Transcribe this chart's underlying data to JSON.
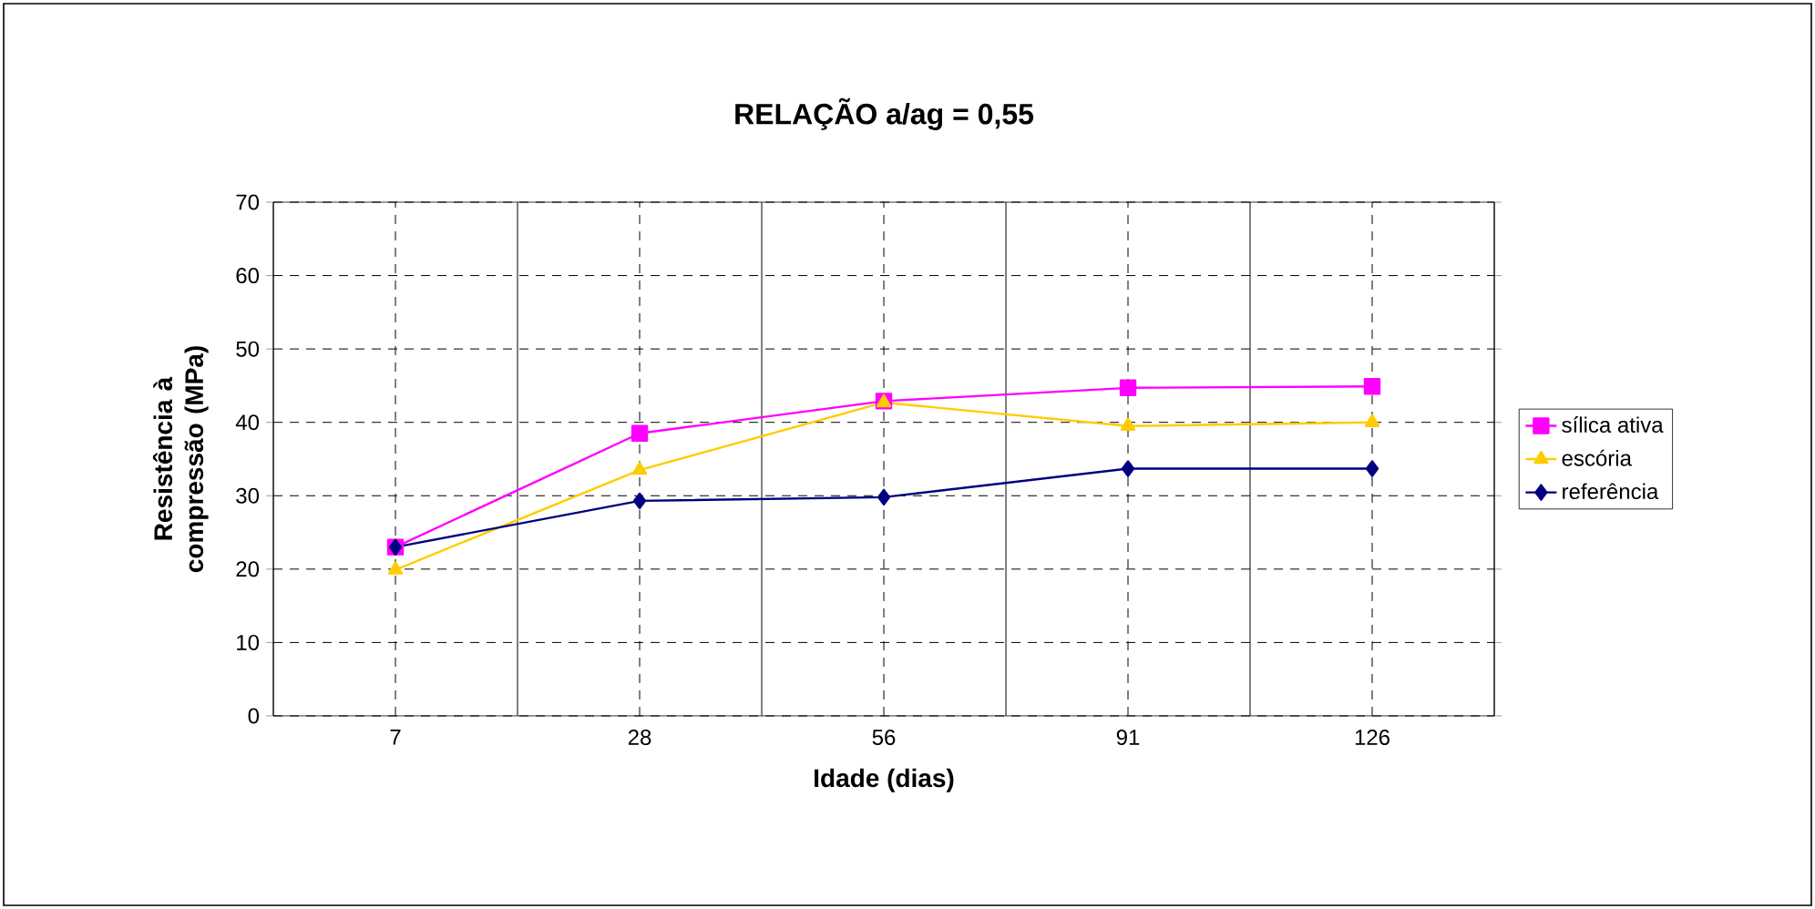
{
  "chart_data": {
    "type": "line",
    "title": "RELAÇÃO a/ag = 0,55",
    "xlabel": "Idade (dias)",
    "ylabel": "Resistência à compressão (MPa)",
    "categories": [
      "7",
      "28",
      "56",
      "91",
      "126"
    ],
    "series": [
      {
        "name": "sílica ativa",
        "color": "#ff00ff",
        "marker": "square",
        "values": [
          23,
          38.5,
          42.9,
          44.7,
          44.9
        ]
      },
      {
        "name": "escória",
        "color": "#ffcc00",
        "marker": "triangle",
        "values": [
          19.9,
          33.5,
          42.7,
          39.5,
          40
        ]
      },
      {
        "name": "referência",
        "color": "#000080",
        "marker": "diamond",
        "values": [
          23,
          29.3,
          29.8,
          33.7,
          33.7
        ]
      }
    ],
    "ylim": [
      0,
      70
    ],
    "yticks": [
      0,
      10,
      20,
      30,
      40,
      50,
      60,
      70
    ],
    "grid": true,
    "legend": "right",
    "line_style": "solid"
  }
}
